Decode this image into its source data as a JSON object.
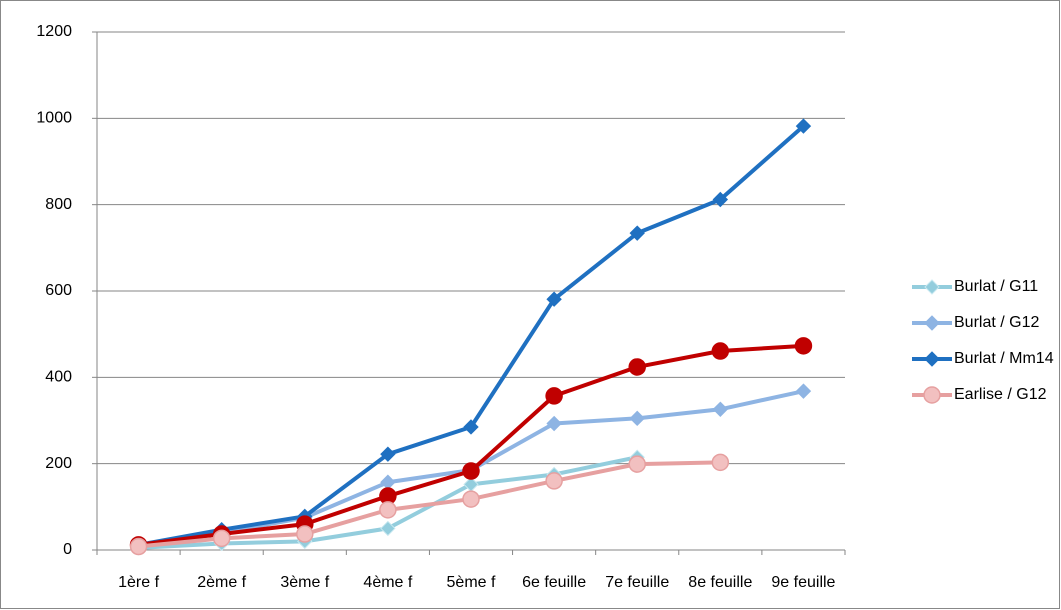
{
  "chart_data": {
    "type": "line",
    "categories": [
      "1ère f",
      "2ème f",
      "3ème f",
      "4ème f",
      "5ème f",
      "6e feuille",
      "7e feuille",
      "8e feuille",
      "9e feuille"
    ],
    "ylim": [
      0,
      1200
    ],
    "yticks": [
      0,
      200,
      400,
      600,
      800,
      1000,
      1200
    ],
    "grid": true,
    "series": [
      {
        "name": "Burlat / G11",
        "color": "#93cddd",
        "marker": "diamond",
        "values": [
          5,
          15,
          20,
          50,
          152,
          175,
          215,
          null,
          null
        ]
      },
      {
        "name": "Burlat / G12",
        "color": "#8eb4e3",
        "marker": "diamond",
        "values": [
          10,
          40,
          75,
          157,
          185,
          293,
          305,
          326,
          368
        ]
      },
      {
        "name": "Burlat / Mm14",
        "color": "#1f70c1",
        "marker": "diamond",
        "values": [
          12,
          47,
          78,
          222,
          285,
          581,
          734,
          812,
          982
        ]
      },
      {
        "name": null,
        "color": "#c00000",
        "marker": "circle",
        "values": [
          12,
          37,
          60,
          125,
          183,
          357,
          424,
          461,
          473
        ]
      },
      {
        "name": "Earlise / G12",
        "color": "#e6a0a0",
        "marker": "circle",
        "values": [
          8,
          27,
          37,
          93,
          118,
          160,
          199,
          203,
          null
        ]
      }
    ]
  }
}
